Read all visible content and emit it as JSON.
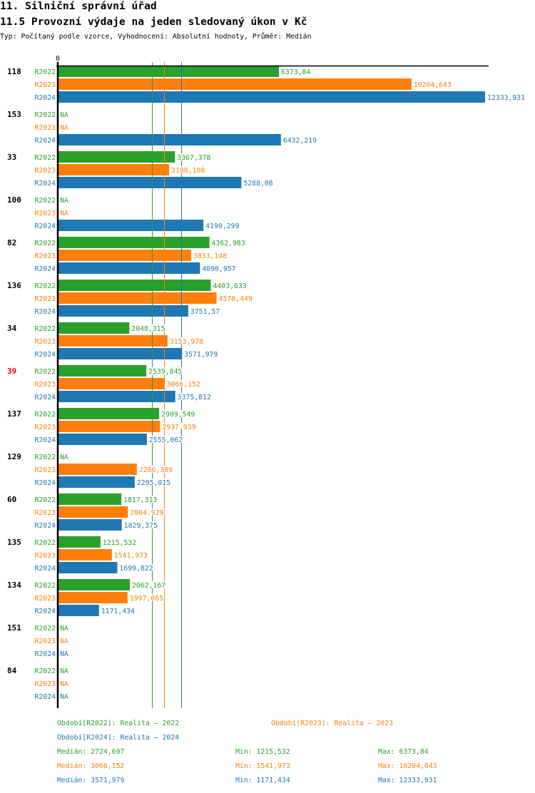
{
  "header": {
    "title": "11. Silniční správní úřad",
    "subtitle": "11.5 Provozní výdaje na jeden sledovaný úkon v Kč",
    "meta": "Typ: Počítaný podle vzorce, Vyhodnocení: Absolutní hodnoty, Průměr: Medián"
  },
  "chart_data": {
    "type": "bar",
    "orientation": "horizontal",
    "title": "11.5 Provozní výdaje na jeden sledovaný úkon v Kč",
    "xlabel": "",
    "ylabel": "",
    "x_ticks": [
      0
    ],
    "x_tick_labels": [
      "0"
    ],
    "xlim": [
      0,
      12437
    ],
    "grid": false,
    "decimal_separator": ",",
    "na_label": "NA",
    "reference_lines": "median",
    "legend_position": "bottom",
    "categories": [
      "118",
      "153",
      "33",
      "100",
      "82",
      "136",
      "34",
      "39",
      "137",
      "129",
      "60",
      "135",
      "134",
      "151",
      "84"
    ],
    "highlighted_categories": [
      "39"
    ],
    "category_color": "#000000",
    "highlight_color": "#ff0000",
    "stat_labels": {
      "median": "Medián",
      "min": "Min",
      "max": "Max"
    },
    "series": [
      {
        "name": "R2022",
        "color": "#2ca02c",
        "legend": "Období[R2022]: Realita – 2022",
        "values": [
          6373.84,
          null,
          3367.378,
          null,
          4362.983,
          4403.633,
          2048.315,
          2539.845,
          2909.549,
          null,
          1817.313,
          1215.532,
          2062.167,
          null,
          null
        ],
        "median": 2724.697,
        "min": 1215.532,
        "max": 6373.84
      },
      {
        "name": "R2023",
        "color": "#ff7f0e",
        "legend": "Období[R2023]: Realita – 2023",
        "values": [
          10204.643,
          null,
          3198.108,
          null,
          3833.148,
          4570.449,
          3153.978,
          3066.152,
          2937.939,
          2266.309,
          2004.929,
          1541.973,
          1997.065,
          null,
          null
        ],
        "median": 3066.152,
        "min": 1541.973,
        "max": 10204.643
      },
      {
        "name": "R2024",
        "color": "#1f77b4",
        "legend": "Období[R2024]: Realita – 2024",
        "values": [
          12333.931,
          6432.219,
          5288.08,
          4190.299,
          4090.957,
          3751.57,
          3571.979,
          3375.812,
          2555.062,
          2205.015,
          1829.375,
          1699.822,
          1171.434,
          null,
          null
        ],
        "median": 3571.979,
        "min": 1171.434,
        "max": 12333.931
      }
    ]
  }
}
